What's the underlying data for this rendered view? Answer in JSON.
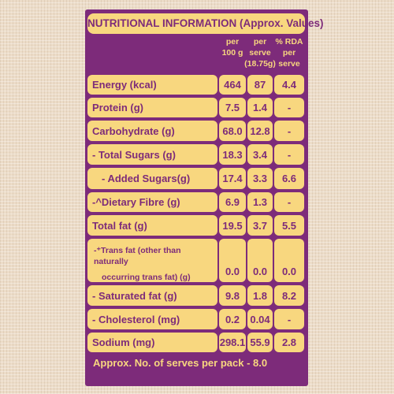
{
  "title": "NUTRITIONAL INFORMATION (Approx. Values)",
  "columns": {
    "per100": [
      "per",
      "100 g"
    ],
    "perServe": [
      "per serve",
      "(18.75g)"
    ],
    "rda": [
      "% RDA",
      "per serve"
    ]
  },
  "rows": [
    {
      "label": "Energy (kcal)",
      "per100": "464",
      "serve": "87",
      "rda": "4.4"
    },
    {
      "label": "Protein (g)",
      "per100": "7.5",
      "serve": "1.4",
      "rda": "-"
    },
    {
      "label": "Carbohydrate (g)",
      "per100": "68.0",
      "serve": "12.8",
      "rda": "-"
    },
    {
      "label": "- Total Sugars (g)",
      "per100": "18.3",
      "serve": "3.4",
      "rda": "-"
    },
    {
      "label": "- Added Sugars(g)",
      "per100": "17.4",
      "serve": "3.3",
      "rda": "6.6"
    },
    {
      "label": "-^Dietary Fibre (g)",
      "per100": "6.9",
      "serve": "1.3",
      "rda": "-"
    },
    {
      "label": "Total fat (g)",
      "per100": "19.5",
      "serve": "3.7",
      "rda": "5.5"
    },
    {
      "label_line1": "-⁺Trans fat (other than naturally",
      "label_line2": "occurring trans fat) (g)",
      "per100": "0.0",
      "serve": "0.0",
      "rda": "0.0"
    },
    {
      "label": "- Saturated fat (g)",
      "per100": "9.8",
      "serve": "1.8",
      "rda": "8.2"
    },
    {
      "label": "- Cholesterol (mg)",
      "per100": "0.2",
      "serve": "0.04",
      "rda": "-"
    },
    {
      "label": "Sodium (mg)",
      "per100": "298.1",
      "serve": "55.9",
      "rda": "2.8"
    }
  ],
  "footer": "Approx. No. of serves per pack - 8.0",
  "colors": {
    "panel": "#7d2b7a",
    "accent": "#f8d77f"
  }
}
